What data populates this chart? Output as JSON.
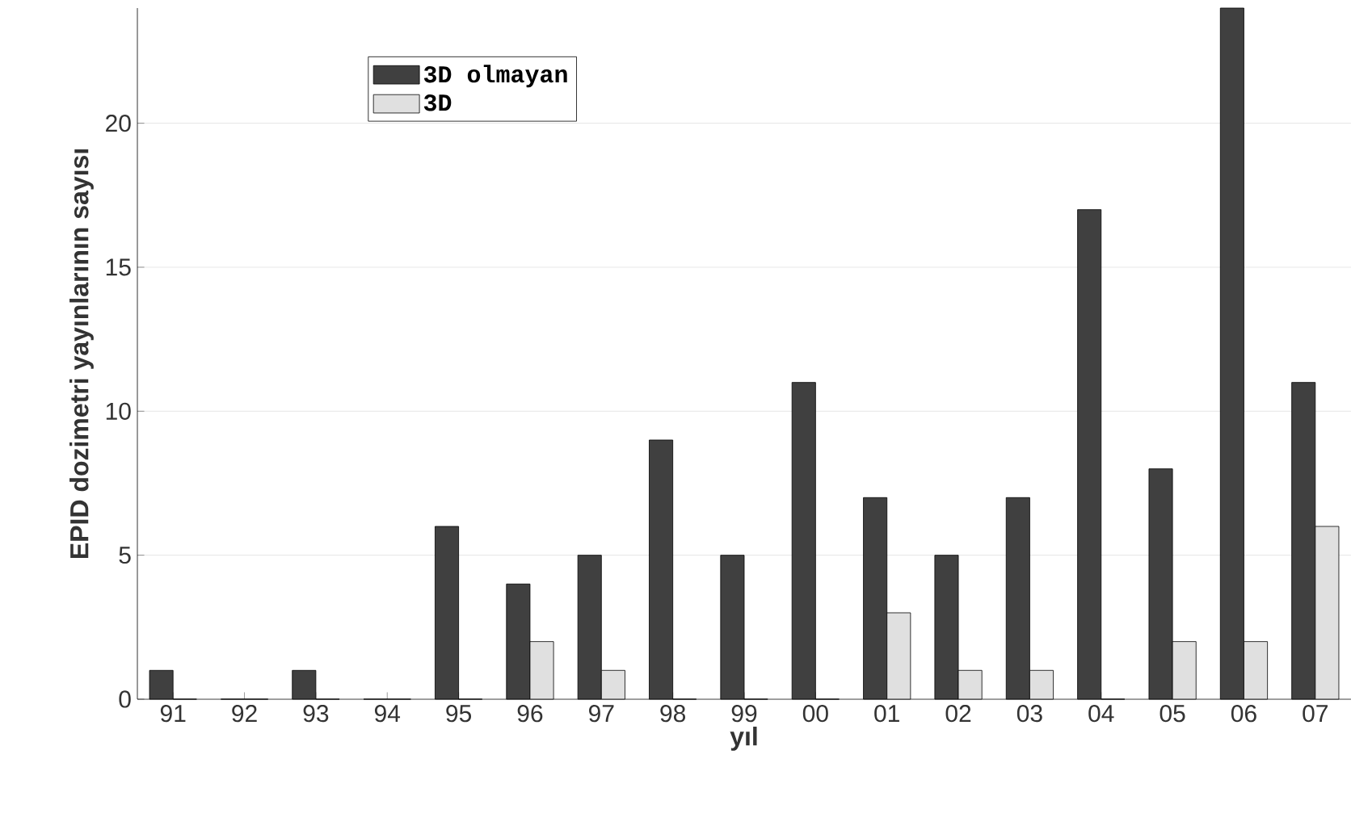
{
  "chart_data": {
    "type": "bar",
    "xlabel": "yıl",
    "ylabel": "EPID dozimetri yayınlarının sayısı",
    "categories": [
      "91",
      "92",
      "93",
      "94",
      "95",
      "96",
      "97",
      "98",
      "99",
      "00",
      "01",
      "02",
      "03",
      "04",
      "05",
      "06",
      "07"
    ],
    "series": [
      {
        "name": "3D olmayan",
        "color": "#404040",
        "values": [
          1,
          0,
          1,
          0,
          6,
          4,
          5,
          9,
          5,
          11,
          7,
          5,
          7,
          17,
          8,
          24,
          11
        ]
      },
      {
        "name": "3D",
        "color": "#e0e0e0",
        "values": [
          0,
          0,
          0,
          0,
          0,
          2,
          1,
          0,
          0,
          0,
          3,
          1,
          1,
          0,
          2,
          2,
          6
        ]
      }
    ],
    "ylim": [
      0,
      24
    ],
    "yticks": [
      0,
      5,
      10,
      15,
      20
    ],
    "grid": "y",
    "legend": "top left"
  }
}
